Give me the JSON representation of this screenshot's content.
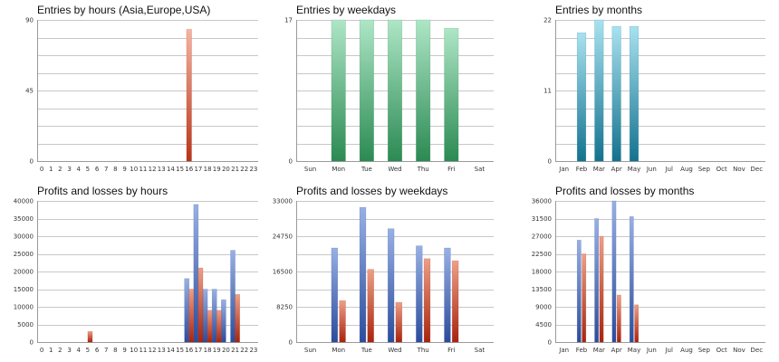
{
  "colors": {
    "salmon": [
      "#f4b5a3",
      "#b83418"
    ],
    "green": [
      "#aee6c6",
      "#2b8a52"
    ],
    "teal": [
      "#a8e2f0",
      "#14728e"
    ],
    "blue": [
      "#98b0e4",
      "#2b4c9c"
    ],
    "red": [
      "#ee9f87",
      "#a8240e"
    ]
  },
  "chart_data": [
    {
      "type": "bar",
      "title": "Entries by hours (Asia,Europe,USA)",
      "categories": [
        "0",
        "1",
        "2",
        "3",
        "4",
        "5",
        "6",
        "7",
        "8",
        "9",
        "10",
        "11",
        "12",
        "13",
        "14",
        "15",
        "16",
        "17",
        "18",
        "19",
        "20",
        "21",
        "22",
        "23"
      ],
      "series": [
        {
          "values": [
            0,
            0,
            0,
            0,
            0,
            0,
            0,
            0,
            0,
            0,
            0,
            0,
            0,
            0,
            0,
            0,
            84,
            0,
            0,
            0,
            0,
            0,
            0,
            0
          ],
          "color": "salmon"
        }
      ],
      "ylim": [
        0,
        90
      ],
      "yticks": [
        0,
        45,
        90
      ],
      "grid": true
    },
    {
      "type": "bar",
      "title": "Entries by weekdays",
      "categories": [
        "Sun",
        "Mon",
        "Tue",
        "Wed",
        "Thu",
        "Fri",
        "Sat"
      ],
      "series": [
        {
          "values": [
            0,
            17,
            17,
            17,
            17,
            16,
            0
          ],
          "color": "green"
        }
      ],
      "ylim": [
        0,
        17
      ],
      "yticks": [
        0,
        17
      ],
      "grid": true
    },
    {
      "type": "bar",
      "title": "Entries by months",
      "categories": [
        "Jan",
        "Feb",
        "Mar",
        "Apr",
        "May",
        "Jun",
        "Jul",
        "Aug",
        "Sep",
        "Oct",
        "Nov",
        "Dec"
      ],
      "series": [
        {
          "values": [
            0,
            20,
            22,
            21,
            21,
            0,
            0,
            0,
            0,
            0,
            0,
            0
          ],
          "color": "teal"
        }
      ],
      "ylim": [
        0,
        22
      ],
      "yticks": [
        0,
        11,
        22
      ],
      "grid": true
    },
    {
      "type": "bar",
      "title": "Profits and losses by hours",
      "categories": [
        "0",
        "1",
        "2",
        "3",
        "4",
        "5",
        "6",
        "7",
        "8",
        "9",
        "10",
        "11",
        "12",
        "13",
        "14",
        "15",
        "16",
        "17",
        "18",
        "19",
        "20",
        "21",
        "22",
        "23"
      ],
      "series": [
        {
          "values": [
            0,
            0,
            0,
            0,
            0,
            0,
            0,
            0,
            0,
            0,
            0,
            0,
            0,
            0,
            0,
            0,
            18000,
            39000,
            15000,
            15000,
            12000,
            26000,
            0,
            0
          ],
          "color": "blue"
        },
        {
          "values": [
            0,
            0,
            0,
            0,
            0,
            3000,
            0,
            0,
            0,
            0,
            0,
            0,
            0,
            0,
            0,
            0,
            15000,
            21000,
            9000,
            9000,
            0,
            13500,
            0,
            0
          ],
          "color": "red"
        }
      ],
      "ylim": [
        0,
        40000
      ],
      "yticks": [
        0,
        5000,
        10000,
        15000,
        20000,
        25000,
        30000,
        35000,
        40000
      ],
      "grid": true
    },
    {
      "type": "bar",
      "title": "Profits and losses by weekdays",
      "categories": [
        "Sun",
        "Mon",
        "Tue",
        "Wed",
        "Thu",
        "Fri",
        "Sat"
      ],
      "series": [
        {
          "values": [
            0,
            22000,
            31500,
            26500,
            22500,
            22000,
            0
          ],
          "color": "blue"
        },
        {
          "values": [
            0,
            9700,
            17000,
            9300,
            19500,
            19000,
            0
          ],
          "color": "red"
        }
      ],
      "ylim": [
        0,
        33000
      ],
      "yticks": [
        0,
        8250,
        16500,
        24750,
        33000
      ],
      "grid": true
    },
    {
      "type": "bar",
      "title": "Profits and losses by months",
      "categories": [
        "Jan",
        "Feb",
        "Mar",
        "Apr",
        "May",
        "Jun",
        "Jul",
        "Aug",
        "Sep",
        "Oct",
        "Nov",
        "Dec"
      ],
      "series": [
        {
          "values": [
            0,
            26000,
            31500,
            36000,
            32000,
            0,
            0,
            0,
            0,
            0,
            0,
            0
          ],
          "color": "blue"
        },
        {
          "values": [
            0,
            22500,
            27000,
            12000,
            9500,
            0,
            0,
            0,
            0,
            0,
            0,
            0
          ],
          "color": "red"
        }
      ],
      "ylim": [
        0,
        36000
      ],
      "yticks": [
        0,
        4500,
        9000,
        13500,
        18000,
        22500,
        27000,
        31500,
        36000
      ],
      "grid": true
    }
  ]
}
